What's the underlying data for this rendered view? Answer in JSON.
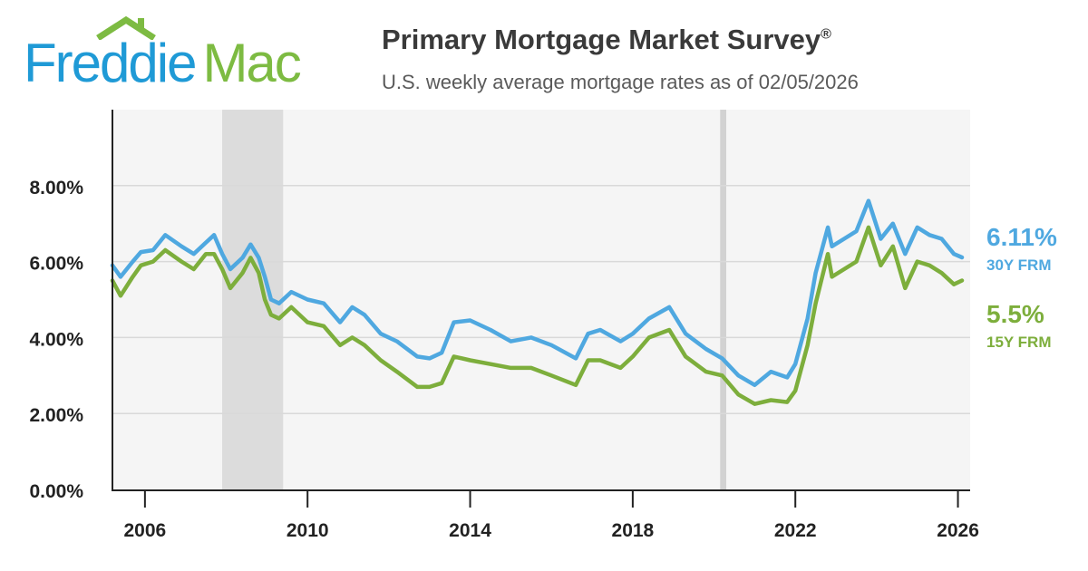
{
  "brand": {
    "word1": "Freddie",
    "word2": "Mac",
    "blue": "#1f9ad6",
    "green": "#7dbb42"
  },
  "header": {
    "title": "Primary Mortgage Market Survey",
    "title_mark": "®",
    "subtitle": "U.S. weekly average mortgage rates as of 02/05/2026"
  },
  "chart_data": {
    "type": "line",
    "title": "Primary Mortgage Market Survey®",
    "subtitle": "U.S. weekly average mortgage rates as of 02/05/2026",
    "xlabel": "",
    "ylabel": "",
    "xlim": [
      2005.2,
      2026.3
    ],
    "ylim": [
      0,
      10
    ],
    "x_ticks": [
      2006,
      2010,
      2014,
      2018,
      2022,
      2026
    ],
    "x_tick_labels": [
      "2006",
      "2010",
      "2014",
      "2018",
      "2022",
      "2026"
    ],
    "y_ticks": [
      0,
      2,
      4,
      6,
      8
    ],
    "y_tick_labels": [
      "0.00%",
      "2.00%",
      "4.00%",
      "6.00%",
      "8.00%"
    ],
    "grid": true,
    "recession_bands": [
      [
        2007.9,
        2009.4
      ],
      [
        2020.15,
        2020.3
      ]
    ],
    "series": [
      {
        "name": "30Y FRM",
        "color": "#4fa8e0",
        "last_value": "6.11%",
        "x": [
          2005.2,
          2005.4,
          2005.7,
          2005.9,
          2006.2,
          2006.5,
          2006.9,
          2007.2,
          2007.5,
          2007.7,
          2007.9,
          2008.1,
          2008.4,
          2008.6,
          2008.8,
          2008.95,
          2009.1,
          2009.3,
          2009.6,
          2010.0,
          2010.4,
          2010.8,
          2011.1,
          2011.4,
          2011.8,
          2012.2,
          2012.7,
          2013.0,
          2013.3,
          2013.6,
          2014.0,
          2014.5,
          2015.0,
          2015.5,
          2016.0,
          2016.6,
          2016.9,
          2017.2,
          2017.7,
          2018.0,
          2018.4,
          2018.9,
          2019.3,
          2019.8,
          2020.2,
          2020.6,
          2021.0,
          2021.4,
          2021.8,
          2022.0,
          2022.3,
          2022.5,
          2022.8,
          2022.9,
          2023.2,
          2023.5,
          2023.8,
          2024.1,
          2024.4,
          2024.7,
          2025.0,
          2025.3,
          2025.6,
          2025.9,
          2026.1
        ],
        "y": [
          5.9,
          5.6,
          6.0,
          6.25,
          6.3,
          6.7,
          6.4,
          6.2,
          6.5,
          6.7,
          6.2,
          5.8,
          6.1,
          6.45,
          6.1,
          5.6,
          5.0,
          4.9,
          5.2,
          5.0,
          4.9,
          4.4,
          4.8,
          4.6,
          4.1,
          3.9,
          3.5,
          3.45,
          3.6,
          4.4,
          4.45,
          4.2,
          3.9,
          4.0,
          3.8,
          3.45,
          4.1,
          4.2,
          3.9,
          4.1,
          4.5,
          4.8,
          4.1,
          3.7,
          3.45,
          3.0,
          2.75,
          3.1,
          2.95,
          3.3,
          4.5,
          5.7,
          6.9,
          6.4,
          6.6,
          6.8,
          7.6,
          6.6,
          7.0,
          6.2,
          6.9,
          6.7,
          6.6,
          6.2,
          6.11
        ]
      },
      {
        "name": "15Y FRM",
        "color": "#7dae3c",
        "last_value": "5.5%",
        "x": [
          2005.2,
          2005.4,
          2005.7,
          2005.9,
          2006.2,
          2006.5,
          2006.9,
          2007.2,
          2007.5,
          2007.7,
          2007.9,
          2008.1,
          2008.4,
          2008.6,
          2008.8,
          2008.95,
          2009.1,
          2009.3,
          2009.6,
          2010.0,
          2010.4,
          2010.8,
          2011.1,
          2011.4,
          2011.8,
          2012.2,
          2012.7,
          2013.0,
          2013.3,
          2013.6,
          2014.0,
          2014.5,
          2015.0,
          2015.5,
          2016.0,
          2016.6,
          2016.9,
          2017.2,
          2017.7,
          2018.0,
          2018.4,
          2018.9,
          2019.3,
          2019.8,
          2020.2,
          2020.6,
          2021.0,
          2021.4,
          2021.8,
          2022.0,
          2022.3,
          2022.5,
          2022.8,
          2022.9,
          2023.2,
          2023.5,
          2023.8,
          2024.1,
          2024.4,
          2024.7,
          2025.0,
          2025.3,
          2025.6,
          2025.9,
          2026.1
        ],
        "y": [
          5.5,
          5.1,
          5.6,
          5.9,
          6.0,
          6.3,
          6.0,
          5.8,
          6.2,
          6.2,
          5.8,
          5.3,
          5.7,
          6.1,
          5.7,
          5.0,
          4.6,
          4.5,
          4.8,
          4.4,
          4.3,
          3.8,
          4.0,
          3.8,
          3.4,
          3.1,
          2.7,
          2.7,
          2.8,
          3.5,
          3.4,
          3.3,
          3.2,
          3.2,
          3.0,
          2.75,
          3.4,
          3.4,
          3.2,
          3.5,
          4.0,
          4.2,
          3.5,
          3.1,
          3.0,
          2.5,
          2.25,
          2.35,
          2.3,
          2.6,
          3.8,
          4.9,
          6.2,
          5.6,
          5.8,
          6.0,
          6.9,
          5.9,
          6.4,
          5.3,
          6.0,
          5.9,
          5.7,
          5.4,
          5.5
        ]
      }
    ]
  }
}
